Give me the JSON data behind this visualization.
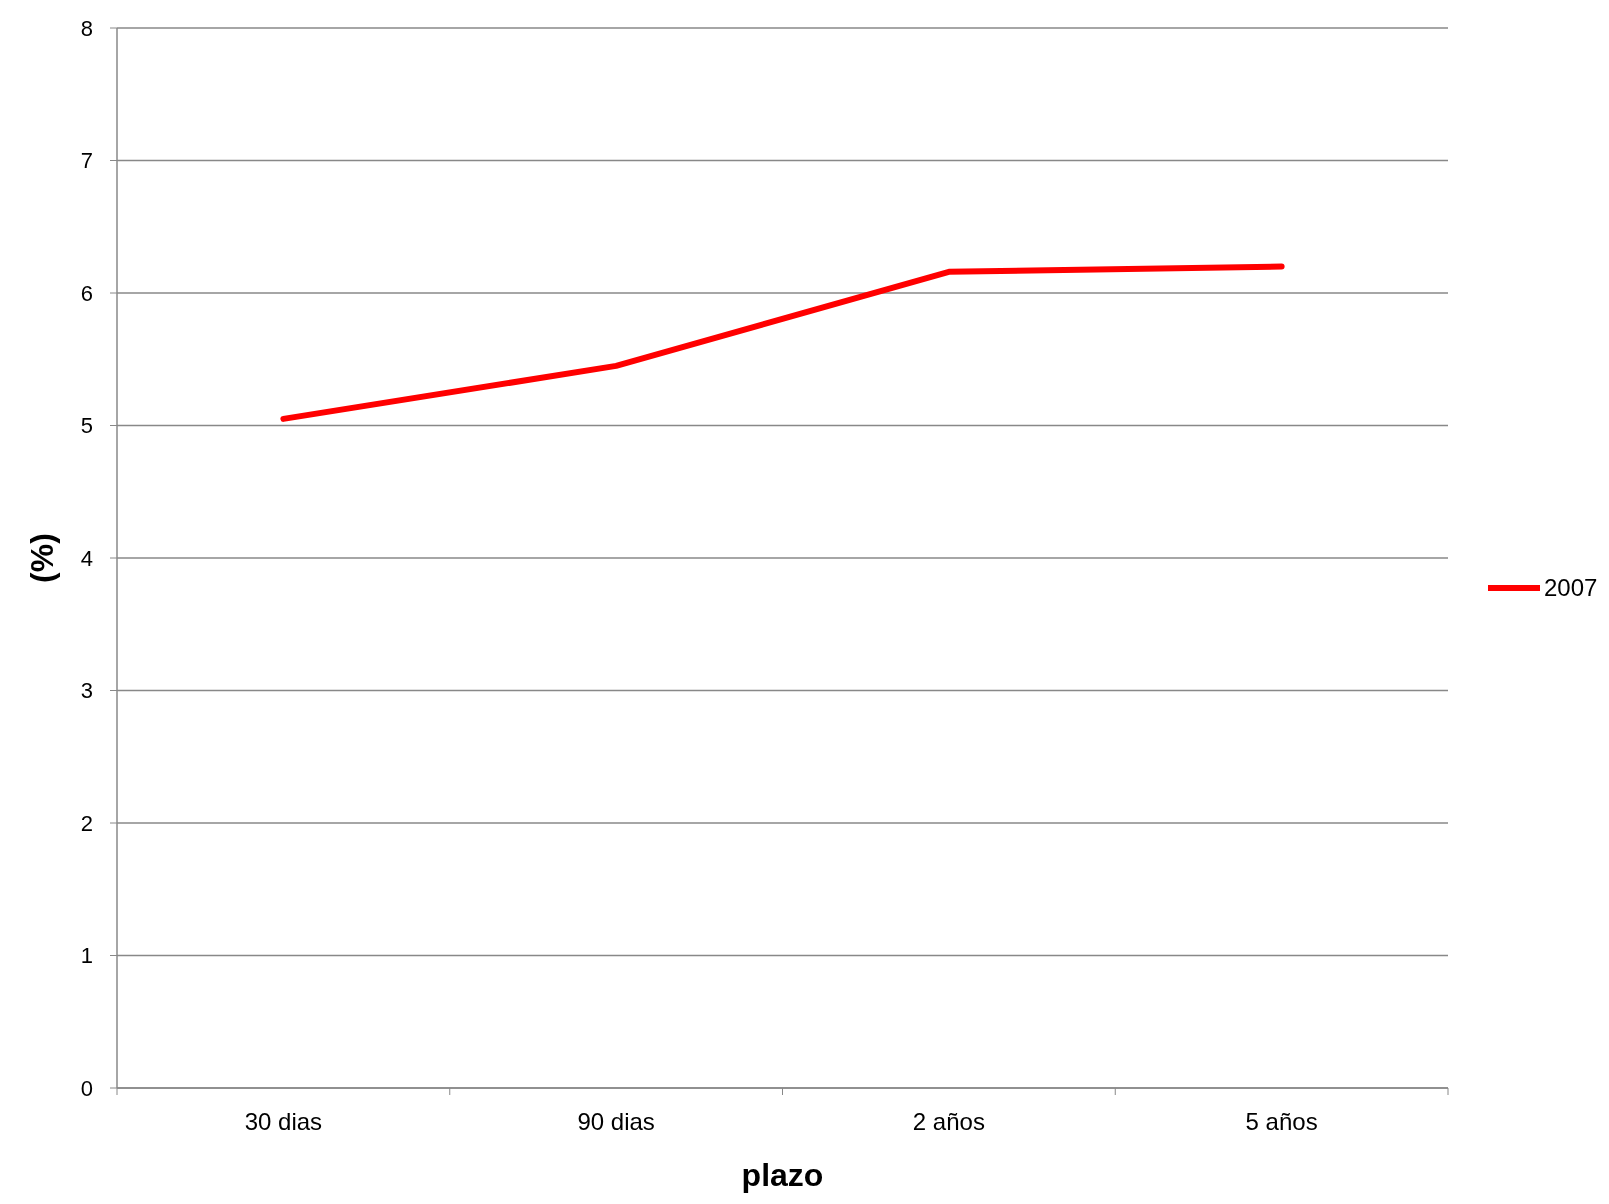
{
  "chart_data": {
    "type": "line",
    "xlabel": "plazo",
    "ylabel": "(%)",
    "categories": [
      "30 dias",
      "90 dias",
      "2 años",
      "5 años"
    ],
    "series": [
      {
        "name": "2007",
        "color": "#ff0000",
        "values": [
          5.05,
          5.45,
          6.16,
          6.2
        ]
      }
    ],
    "ylim": [
      0,
      8
    ],
    "yticks": [
      0,
      1,
      2,
      3,
      4,
      5,
      6,
      7,
      8
    ],
    "grid": "y",
    "legend": "right",
    "marker": "none",
    "line_style": "solid"
  }
}
